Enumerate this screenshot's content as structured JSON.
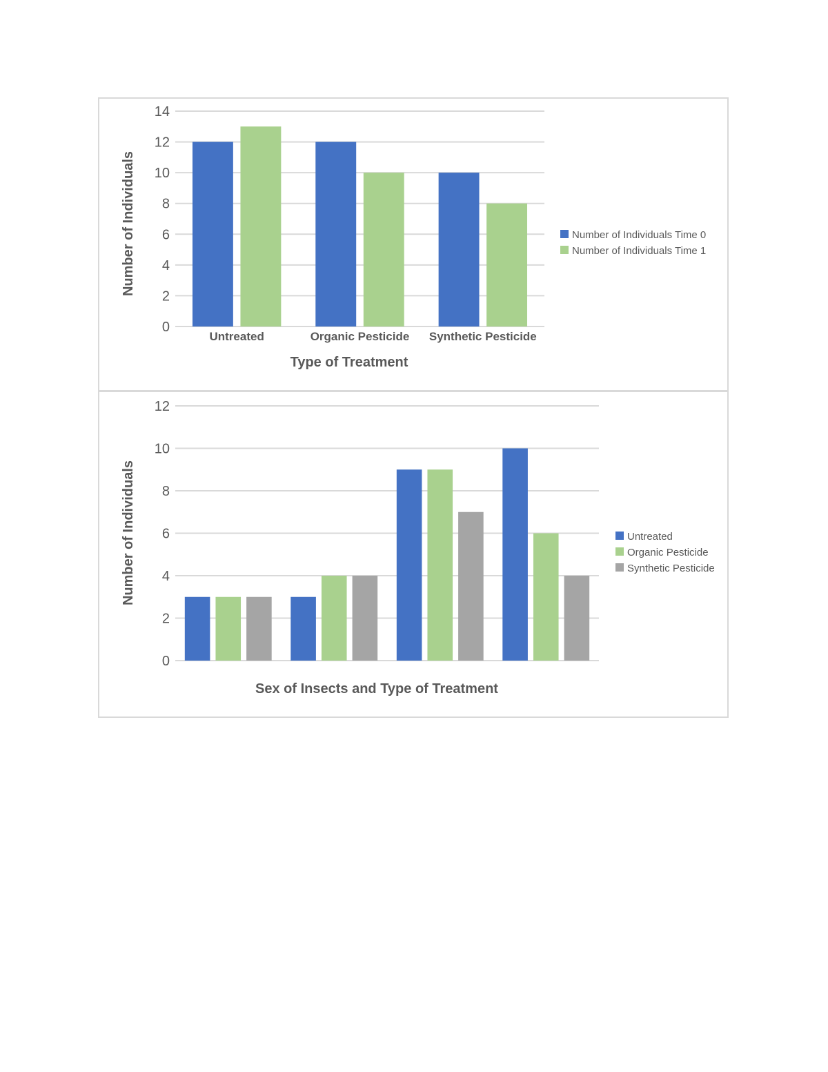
{
  "chart_data": [
    {
      "type": "bar",
      "title": "",
      "xlabel": "Type of Treatment",
      "ylabel": "Number of Individuals",
      "ylim": [
        0,
        14
      ],
      "yticks": [
        0,
        2,
        4,
        6,
        8,
        10,
        12,
        14
      ],
      "grid": true,
      "legend_position": "right",
      "categories": [
        "Untreated",
        "Organic Pesticide",
        "Synthetic Pesticide"
      ],
      "series": [
        {
          "name": "Number of Individuals Time 0",
          "color": "#4472c4",
          "values": [
            12,
            12,
            10
          ]
        },
        {
          "name": "Number of Individuals Time 1",
          "color": "#a9d18e",
          "values": [
            13,
            10,
            8
          ]
        }
      ]
    },
    {
      "type": "bar",
      "title": "",
      "xlabel": "Sex of Insects and Type of Treatment",
      "ylabel": "Number of Individuals",
      "ylim": [
        0,
        12
      ],
      "yticks": [
        0,
        2,
        4,
        6,
        8,
        10,
        12
      ],
      "grid": true,
      "legend_position": "right",
      "categories": [
        "",
        "",
        "",
        ""
      ],
      "series": [
        {
          "name": "Untreated",
          "color": "#4472c4",
          "values": [
            3,
            3,
            9,
            10
          ]
        },
        {
          "name": "Organic Pesticide",
          "color": "#a9d18e",
          "values": [
            3,
            4,
            9,
            6
          ]
        },
        {
          "name": "Synthetic Pesticide",
          "color": "#a5a5a5",
          "values": [
            3,
            4,
            7,
            4
          ]
        }
      ]
    }
  ],
  "colors": {
    "grid": "#d9d9d9",
    "text": "#595959",
    "frame": "#d9d9d9"
  }
}
